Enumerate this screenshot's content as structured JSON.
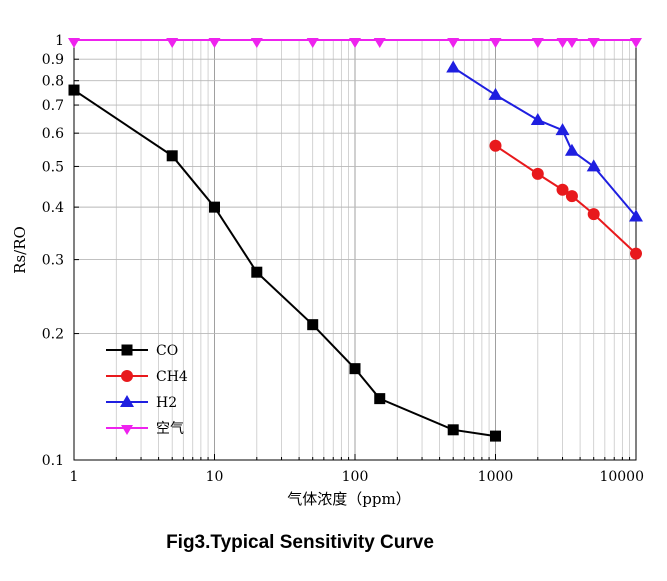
{
  "caption": "Fig3.Typical Sensitivity Curve",
  "chart_data": {
    "type": "line",
    "x_scale": "log",
    "y_scale": "log",
    "xlim": [
      1,
      10000
    ],
    "ylim": [
      0.1,
      1
    ],
    "xlabel": "气体浓度（ppm）",
    "ylabel": "Rs/RO",
    "x_ticks": [
      "1",
      "10",
      "100",
      "1000",
      "10000"
    ],
    "y_ticks": [
      {
        "v": 0.1,
        "label": "0.1"
      },
      {
        "v": 0.2,
        "label": "0.2"
      },
      {
        "v": 0.3,
        "label": "0.3"
      },
      {
        "v": 0.4,
        "label": "0.4"
      },
      {
        "v": 0.5,
        "label": "0.5"
      },
      {
        "v": 0.6,
        "label": "0.6"
      },
      {
        "v": 0.7,
        "label": "0.7"
      },
      {
        "v": 0.8,
        "label": "0.8"
      },
      {
        "v": 0.9,
        "label": "0.9"
      },
      {
        "v": 1,
        "label": "1"
      }
    ],
    "grid": true,
    "legend_position": "bottom-left",
    "series": [
      {
        "name": "CO",
        "color": "#000000",
        "marker": "square",
        "x": [
          1,
          5,
          10,
          20,
          50,
          100,
          150,
          500,
          1000
        ],
        "y": [
          0.76,
          0.53,
          0.4,
          0.28,
          0.21,
          0.165,
          0.14,
          0.118,
          0.114
        ]
      },
      {
        "name": "CH4",
        "color": "#e8191c",
        "marker": "circle",
        "x": [
          1000,
          2000,
          3000,
          3500,
          5000,
          10000
        ],
        "y": [
          0.56,
          0.48,
          0.44,
          0.425,
          0.385,
          0.31
        ]
      },
      {
        "name": "H2",
        "color": "#1f1fe0",
        "marker": "triangle-up",
        "x": [
          500,
          1000,
          2000,
          3000,
          3500,
          5000,
          10000
        ],
        "y": [
          0.86,
          0.74,
          0.645,
          0.61,
          0.545,
          0.5,
          0.38
        ]
      },
      {
        "name": "空气",
        "color": "#ee22ee",
        "marker": "triangle-down",
        "x": [
          1,
          5,
          10,
          20,
          50,
          100,
          150,
          500,
          1000,
          2000,
          3000,
          3500,
          5000,
          10000
        ],
        "y": [
          1,
          1,
          1,
          1,
          1,
          1,
          1,
          1,
          1,
          1,
          1,
          1,
          1,
          1
        ]
      }
    ]
  }
}
